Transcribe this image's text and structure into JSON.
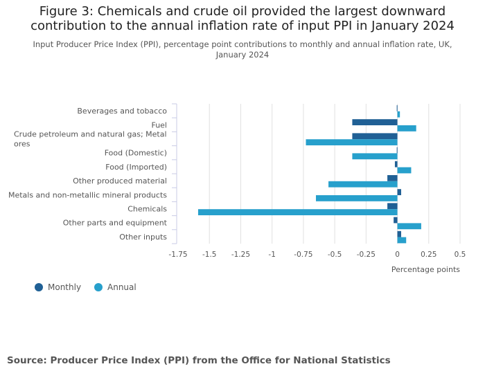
{
  "title": "Figure 3: Chemicals and crude oil provided the largest downward contribution to the annual inflation rate of input PPI in January 2024",
  "subtitle": "Input Producer Price Index (PPI), percentage point contributions to monthly and annual inflation rate, UK, January 2024",
  "source": "Source: Producer Price Index (PPI) from the Office for National Statistics",
  "colors": {
    "Monthly": "#206095",
    "Annual": "#27a0cc",
    "grid": "#e0e0e0",
    "axis": "#c8cbe6"
  },
  "chart_data": {
    "type": "bar",
    "orientation": "horizontal",
    "xlabel": "Percentage points",
    "xlim": [
      -1.75,
      0.5
    ],
    "xticks": [
      -1.75,
      -1.5,
      -1.25,
      -1,
      -0.75,
      -0.5,
      -0.25,
      0,
      0.25,
      0.5
    ],
    "xtick_labels": [
      "-1.75",
      "-1.5",
      "-1.25",
      "-1",
      "-0.75",
      "-0.5",
      "-0.25",
      "0",
      "0.25",
      "0.5"
    ],
    "grid": true,
    "legend_placement": "bottom-left",
    "categories": [
      "Beverages and tobacco",
      "Fuel",
      "Crude petroleum and natural gas; Metal ores",
      "Food (Domestic)",
      "Food (Imported)",
      "Other produced material",
      "Metals and non-metallic mineral products",
      "Chemicals",
      "Other parts and equipment",
      "Other inputs"
    ],
    "series": [
      {
        "name": "Monthly",
        "values": [
          -0.005,
          -0.36,
          -0.36,
          -0.005,
          -0.02,
          -0.08,
          0.03,
          -0.08,
          -0.03,
          0.03
        ]
      },
      {
        "name": "Annual",
        "values": [
          0.02,
          0.15,
          -0.73,
          -0.36,
          0.11,
          -0.55,
          -0.65,
          -1.59,
          0.19,
          0.07
        ]
      }
    ]
  }
}
